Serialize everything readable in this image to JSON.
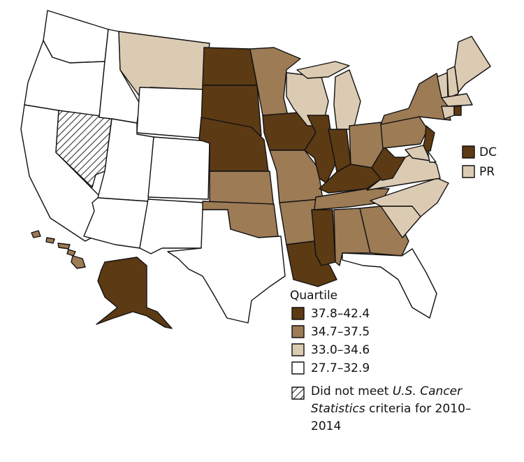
{
  "legend": {
    "title": "Quartile",
    "items": [
      {
        "label": "37.8–42.4",
        "color": "#5c3a14"
      },
      {
        "label": "34.7–37.5",
        "color": "#9c7b55"
      },
      {
        "label": "33.0–34.6",
        "color": "#dccbb3"
      },
      {
        "label": "27.7–32.9",
        "color": "#ffffff"
      }
    ],
    "note": [
      {
        "text": "Did not meet ",
        "italic": false
      },
      {
        "text": "U.S. Cancer Statistics",
        "italic": true
      },
      {
        "text": " criteria for 2010–2014",
        "italic": false
      }
    ]
  },
  "insets": [
    {
      "label": "DC",
      "quartile": 0
    },
    {
      "label": "PR",
      "quartile": 2
    }
  ]
}
